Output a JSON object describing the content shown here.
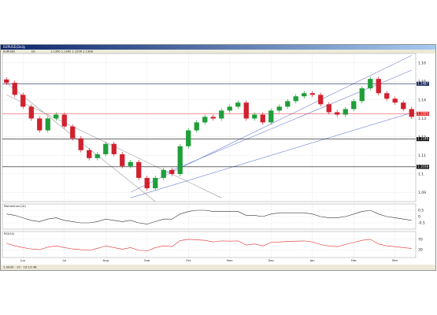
{
  "window": {
    "title": "EURUSD,Daily",
    "toolbar": [
      "EURUSD",
      "D1",
      "1.1350 1.1362 1.1296 1.1308"
    ],
    "status": "1.0000 · 10 · 10:13:48"
  },
  "chart_data": [
    {
      "type": "candlestick",
      "categories": [
        null,
        null,
        "Jun",
        null,
        null,
        null,
        null,
        "Jul",
        null,
        null,
        null,
        null,
        "Aug",
        null,
        null,
        null,
        null,
        "Sep",
        null,
        null,
        null,
        null,
        "Oct",
        null,
        null,
        null,
        null,
        "Nov",
        null,
        null,
        null,
        null,
        "Dec",
        null,
        null,
        null,
        null,
        "Jan",
        null,
        null,
        null,
        null,
        "Feb",
        null,
        null,
        null,
        null,
        "Mar",
        null,
        null
      ],
      "open": [
        1.151,
        1.1492,
        1.1427,
        1.1363,
        1.1299,
        1.1235,
        1.1299,
        1.132,
        1.1256,
        1.1192,
        1.1128,
        1.1085,
        1.1106,
        1.1162,
        1.1106,
        1.1042,
        1.1064,
        1.0978,
        1.0922,
        1.0978,
        1.1021,
        1.0999,
        1.1149,
        1.1235,
        1.1278,
        1.1308,
        1.1299,
        1.1342,
        1.1363,
        1.1385,
        1.1299,
        1.132,
        1.1278,
        1.1342,
        1.1363,
        1.1393,
        1.1419,
        1.1436,
        1.1427,
        1.1376,
        1.1333,
        1.132,
        1.135,
        1.1393,
        1.1462,
        1.1513,
        1.1436,
        1.1406,
        1.1385,
        1.135
      ],
      "high": [
        1.1522,
        1.1504,
        1.1439,
        1.1375,
        1.1311,
        1.1311,
        1.1332,
        1.1332,
        1.1268,
        1.1204,
        1.114,
        1.1118,
        1.1174,
        1.1174,
        1.1118,
        1.1076,
        1.1076,
        1.099,
        1.099,
        1.1033,
        1.1033,
        1.1161,
        1.1247,
        1.129,
        1.132,
        1.132,
        1.1354,
        1.1375,
        1.1397,
        1.1397,
        1.1332,
        1.1332,
        1.1354,
        1.1375,
        1.1405,
        1.1431,
        1.1448,
        1.1448,
        1.1439,
        1.1388,
        1.1345,
        1.1362,
        1.1405,
        1.1474,
        1.1525,
        1.1525,
        1.1448,
        1.1418,
        1.1397,
        1.1362
      ],
      "low": [
        1.148,
        1.1415,
        1.1351,
        1.1287,
        1.1223,
        1.1223,
        1.1287,
        1.1244,
        1.118,
        1.1116,
        1.1073,
        1.1073,
        1.1094,
        1.1094,
        1.103,
        1.103,
        1.0966,
        1.091,
        1.091,
        1.0966,
        1.0987,
        1.0987,
        1.1137,
        1.1223,
        1.1266,
        1.1287,
        1.1287,
        1.133,
        1.1351,
        1.1287,
        1.1287,
        1.1266,
        1.1266,
        1.133,
        1.1351,
        1.1381,
        1.1407,
        1.1415,
        1.1364,
        1.1321,
        1.1308,
        1.1308,
        1.1338,
        1.1381,
        1.145,
        1.1424,
        1.1394,
        1.1373,
        1.1338,
        1.1296
      ],
      "close": [
        1.1492,
        1.1427,
        1.1363,
        1.1299,
        1.1235,
        1.1299,
        1.132,
        1.1256,
        1.1192,
        1.1128,
        1.1085,
        1.1106,
        1.1162,
        1.1106,
        1.1042,
        1.1064,
        1.0978,
        1.0922,
        1.0978,
        1.1021,
        1.0999,
        1.1149,
        1.1235,
        1.1278,
        1.1308,
        1.1299,
        1.1342,
        1.1363,
        1.1385,
        1.1299,
        1.132,
        1.1278,
        1.1342,
        1.1363,
        1.1393,
        1.1419,
        1.1436,
        1.1427,
        1.1376,
        1.1333,
        1.132,
        1.135,
        1.1393,
        1.1462,
        1.1513,
        1.1436,
        1.1406,
        1.1385,
        1.135,
        1.1308
      ],
      "up_color": "#1f9e3a",
      "down_color": "#d0212e",
      "ylim": [
        1.085,
        1.165
      ],
      "yticks": [
        1.09,
        1.1,
        1.11,
        1.12,
        1.13,
        1.14,
        1.15,
        1.16
      ],
      "grid": true,
      "hlines": [
        {
          "value": 1.1487,
          "color": "#1a2a5a"
        },
        {
          "value": 1.1325,
          "color": "#e03030"
        },
        {
          "value": 1.1188,
          "color": "#111111"
        },
        {
          "value": 1.1038,
          "color": "#111111"
        }
      ],
      "trendlines": [
        {
          "from": [
            0,
            1.1492
          ],
          "to": [
            18,
            1.085
          ],
          "color": "#9a9a9a"
        },
        {
          "from": [
            0,
            1.1427
          ],
          "to": [
            26,
            1.087
          ],
          "color": "#9a9a9a"
        },
        {
          "from": [
            15,
            1.09
          ],
          "to": [
            49,
            1.164
          ],
          "color": "#6d7fd0"
        },
        {
          "from": [
            19,
            1.1
          ],
          "to": [
            49,
            1.156
          ],
          "color": "#6d7fd0"
        },
        {
          "from": [
            15,
            1.087
          ],
          "to": [
            49,
            1.133
          ],
          "color": "#6d7fd0"
        }
      ]
    },
    {
      "type": "line",
      "title": "Momentum(14)",
      "color": "#333333",
      "values": [
        0.2,
        0.1,
        -0.1,
        -0.3,
        -0.4,
        -0.2,
        -0.1,
        -0.3,
        -0.4,
        -0.5,
        -0.5,
        -0.4,
        -0.2,
        -0.3,
        -0.4,
        -0.3,
        -0.5,
        -0.6,
        -0.4,
        -0.2,
        -0.2,
        0.2,
        0.4,
        0.5,
        0.5,
        0.4,
        0.4,
        0.4,
        0.4,
        0.1,
        0.1,
        0.0,
        0.2,
        0.3,
        0.3,
        0.3,
        0.3,
        0.2,
        0.0,
        -0.1,
        -0.1,
        0.0,
        0.2,
        0.4,
        0.5,
        0.2,
        0.0,
        -0.1,
        -0.2,
        -0.3
      ],
      "ylim": [
        -1,
        1
      ],
      "yticks": [
        -0.5,
        0,
        0.5
      ]
    },
    {
      "type": "line",
      "title": "RSI(14)",
      "color": "#e03030",
      "values": [
        55,
        45,
        38,
        33,
        30,
        40,
        45,
        38,
        33,
        30,
        28,
        35,
        45,
        38,
        32,
        38,
        28,
        25,
        38,
        45,
        42,
        65,
        70,
        68,
        66,
        60,
        64,
        63,
        64,
        48,
        52,
        45,
        58,
        60,
        62,
        63,
        64,
        60,
        50,
        44,
        42,
        50,
        58,
        66,
        70,
        52,
        45,
        42,
        38,
        35
      ],
      "ylim": [
        0,
        100
      ],
      "yticks": [
        30,
        70
      ]
    }
  ]
}
